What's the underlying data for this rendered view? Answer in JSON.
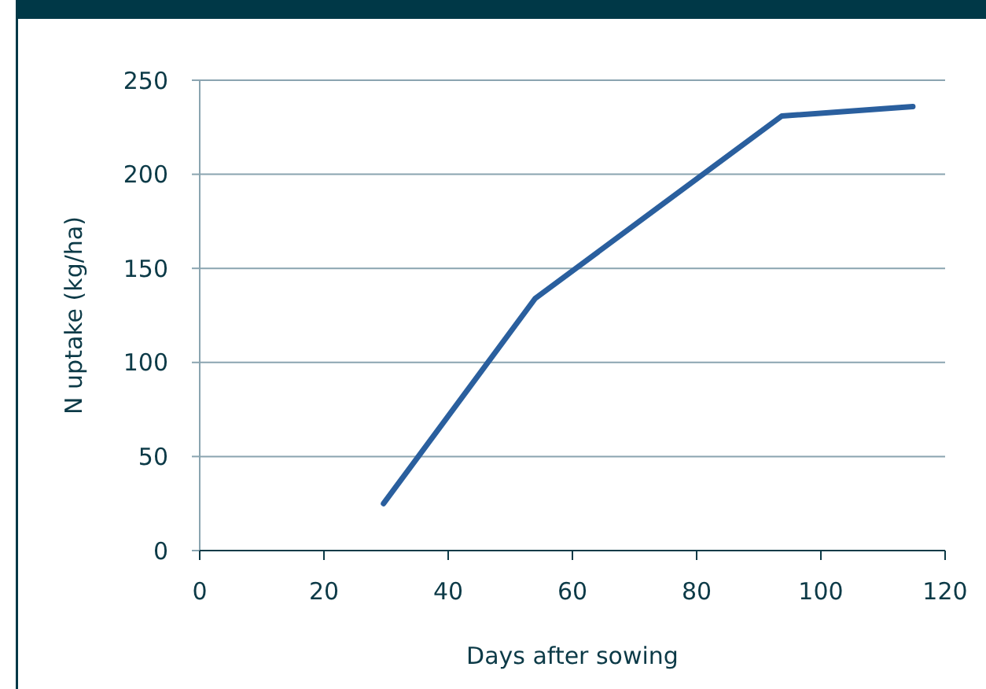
{
  "chart_data": {
    "type": "line",
    "xlabel": "Days after sowing",
    "ylabel": "N uptake (kg/ha)",
    "x": [
      29.6,
      54,
      93.7,
      114.8
    ],
    "series": [
      {
        "color": "#2a5f9e",
        "values": [
          25,
          134,
          231,
          236
        ]
      }
    ],
    "xlim": [
      0,
      120
    ],
    "xticks": [
      0,
      20,
      40,
      60,
      80,
      100,
      120
    ],
    "ylim": [
      0,
      250
    ],
    "yticks": [
      0,
      50,
      100,
      150,
      200,
      250
    ],
    "grid": "y",
    "marker": "none",
    "line_style": "solid"
  }
}
